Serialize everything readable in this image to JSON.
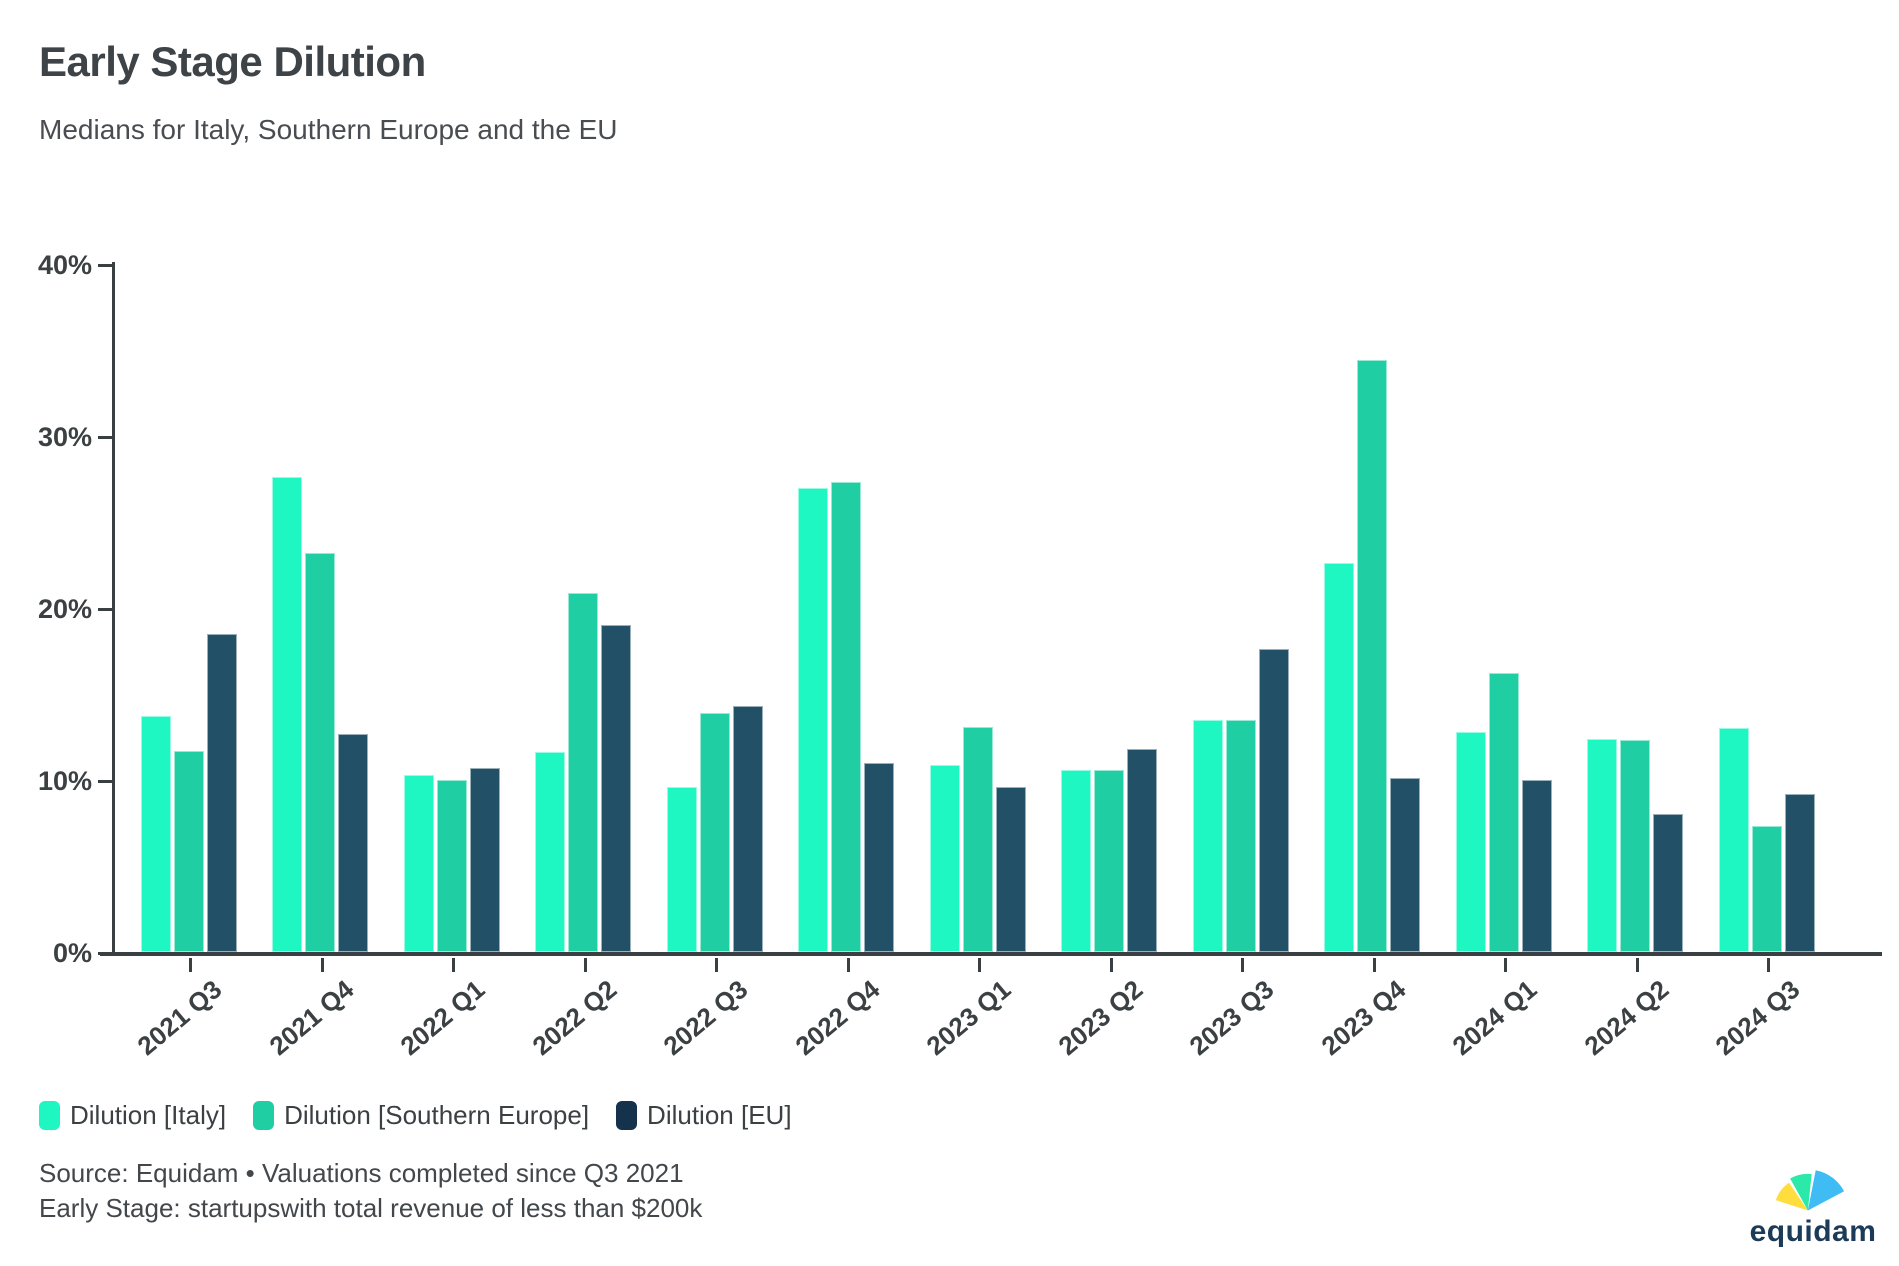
{
  "header": {
    "title": "Early Stage Dilution",
    "subtitle": "Medians for Italy, Southern Europe and the EU"
  },
  "chart_data": {
    "type": "bar",
    "title": "Early Stage Dilution",
    "subtitle": "Medians for Italy, Southern Europe and the EU",
    "categories": [
      "2021 Q3",
      "2021 Q4",
      "2022 Q1",
      "2022 Q2",
      "2022 Q3",
      "2022 Q4",
      "2023 Q1",
      "2023 Q2",
      "2023 Q3",
      "2023 Q4",
      "2024 Q1",
      "2024 Q2",
      "2024 Q3"
    ],
    "series": [
      {
        "key": "italy",
        "name": "Dilution [Italy]",
        "color": "#1EF7C2",
        "values": [
          13.7,
          27.6,
          10.3,
          11.6,
          9.6,
          27.0,
          10.9,
          10.6,
          13.5,
          22.6,
          12.8,
          12.4,
          13.0
        ]
      },
      {
        "key": "southern-europe",
        "name": "Dilution [Southern Europe]",
        "color": "#1FCEA3",
        "values": [
          11.7,
          23.2,
          10.0,
          20.9,
          13.9,
          27.3,
          13.1,
          10.6,
          13.5,
          34.4,
          16.2,
          12.3,
          7.3
        ]
      },
      {
        "key": "eu",
        "name": "Dilution [EU]",
        "color": "#215067",
        "legend_color": "#14324C",
        "values": [
          18.5,
          12.7,
          10.7,
          19.0,
          14.3,
          11.0,
          9.6,
          11.8,
          17.6,
          10.1,
          10.0,
          8.0,
          9.2
        ]
      }
    ],
    "ylim": [
      0,
      40
    ],
    "ytick_labels": [
      "0%",
      "10%",
      "20%",
      "30%",
      "40%"
    ],
    "unit": "%",
    "grid": false,
    "legend_position": "bottom-left"
  },
  "footer": {
    "source_line": "Source: Equidam • Valuations completed since Q3 2021",
    "note_line": "Early Stage: startupswith total revenue of less than $200k"
  },
  "logo": {
    "text": "equidam",
    "fan_colors": {
      "yellow": "#FFDD3C",
      "green": "#2BE9A9",
      "blue": "#3FBCF4"
    },
    "text_color": "#1C3B59"
  }
}
